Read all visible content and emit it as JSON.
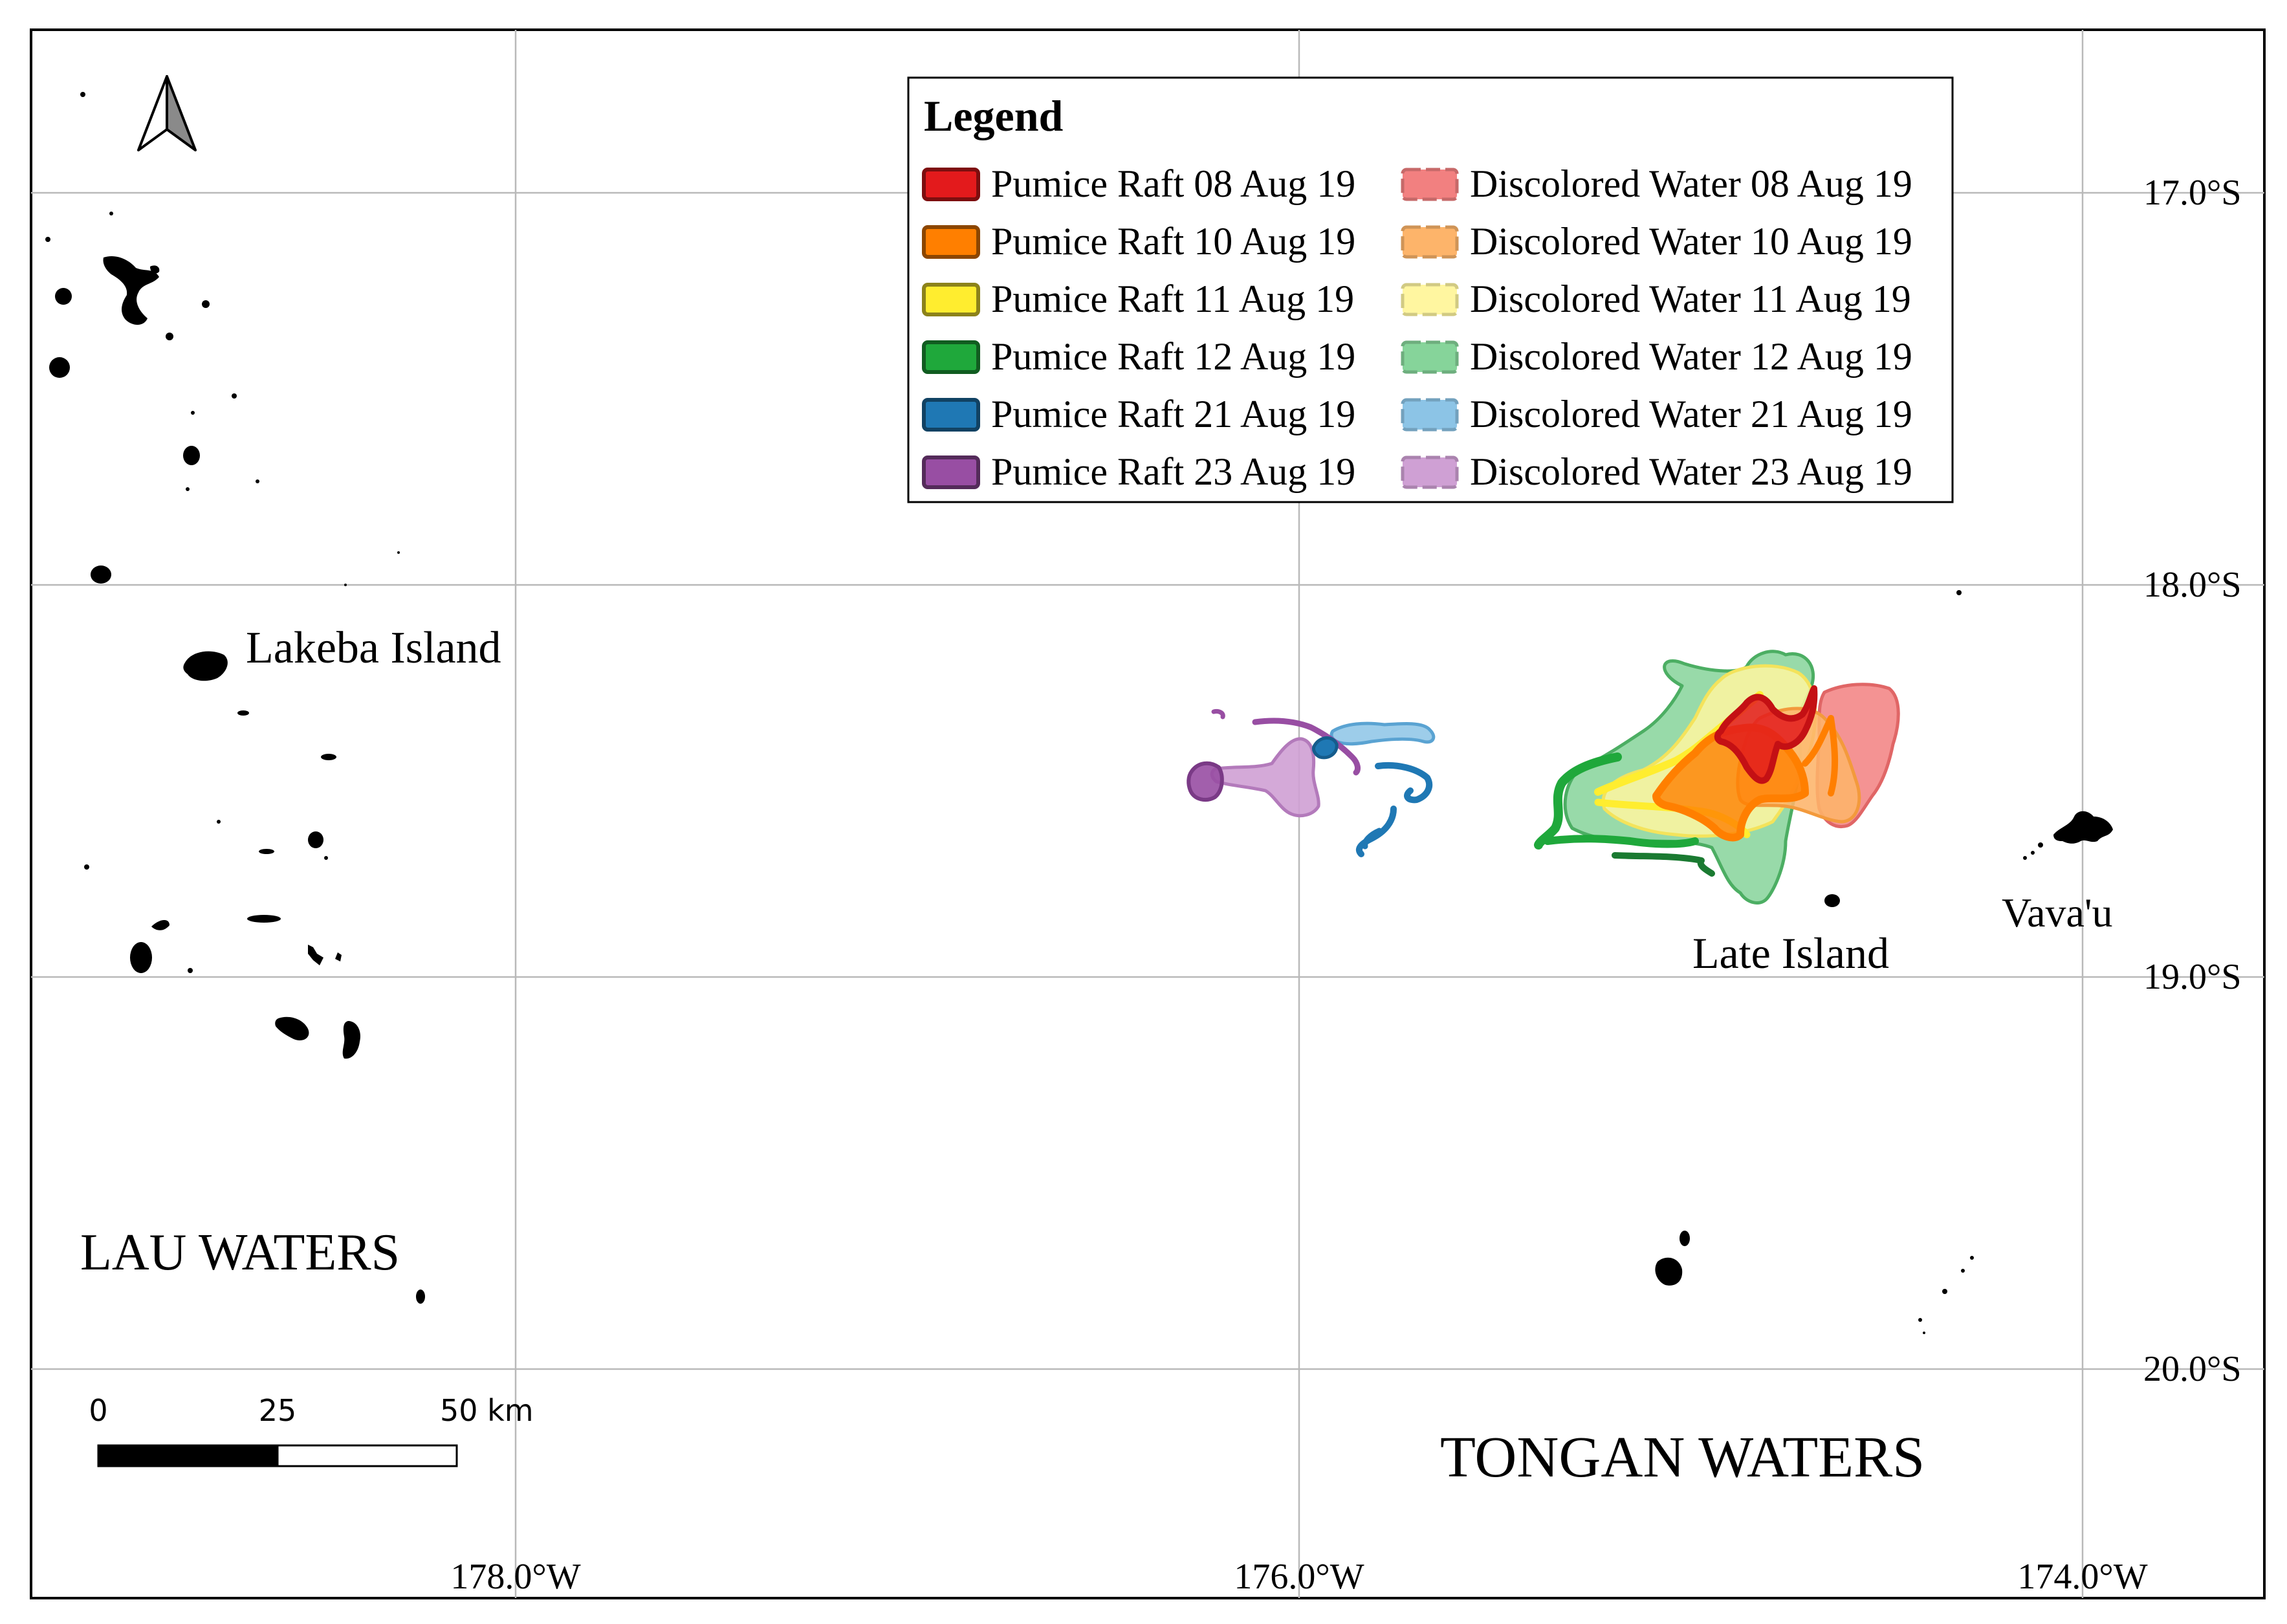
{
  "map": {
    "latitude_labels": [
      "17.0°S",
      "18.0°S",
      "19.0°S",
      "20.0°S"
    ],
    "longitude_labels": [
      "178.0°W",
      "176.0°W",
      "174.0°W"
    ],
    "place_labels": {
      "lakeba": "Lakeba Island",
      "late": "Late Island",
      "vavau": "Vava'u",
      "lau_waters": "LAU WATERS",
      "tongan_waters": "TONGAN WATERS"
    },
    "legend": {
      "title": "Legend",
      "items": [
        {
          "label": "Pumice Raft 08 Aug 19",
          "color": "#e31a1c",
          "type": "raft"
        },
        {
          "label": "Pumice Raft 10 Aug 19",
          "color": "#ff7f00",
          "type": "raft"
        },
        {
          "label": "Pumice Raft 11 Aug 19",
          "color": "#ffed2f",
          "type": "raft"
        },
        {
          "label": "Pumice Raft 12 Aug 19",
          "color": "#1fa83b",
          "type": "raft"
        },
        {
          "label": "Pumice Raft 21 Aug 19",
          "color": "#1f78b4",
          "type": "raft"
        },
        {
          "label": "Pumice Raft 23 Aug 19",
          "color": "#984ea3",
          "type": "raft"
        },
        {
          "label": "Discolored Water 08 Aug 19",
          "color": "#f28080",
          "type": "water"
        },
        {
          "label": "Discolored Water 10 Aug 19",
          "color": "#fdb46a",
          "type": "water"
        },
        {
          "label": "Discolored Water 11 Aug 19",
          "color": "#fff6a0",
          "type": "water"
        },
        {
          "label": "Discolored Water 12 Aug 19",
          "color": "#86d49a",
          "type": "water"
        },
        {
          "label": "Discolored Water 21 Aug 19",
          "color": "#8cc4e6",
          "type": "water"
        },
        {
          "label": "Discolored Water 23 Aug 19",
          "color": "#cfa0d4",
          "type": "water"
        }
      ]
    },
    "scale_bar": {
      "tick_labels": [
        "0",
        "25",
        "50 km"
      ]
    },
    "north_arrow_icon": "north-arrow-icon"
  }
}
